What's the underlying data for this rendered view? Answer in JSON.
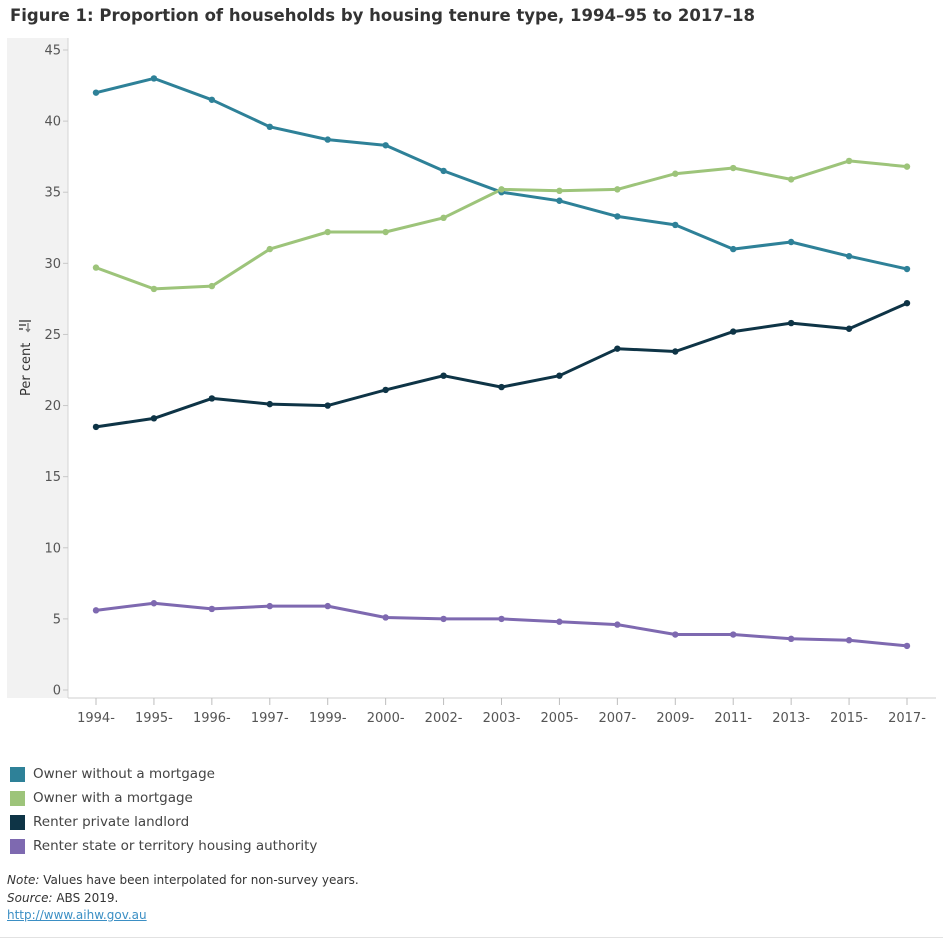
{
  "title": "Figure 1: Proportion of households by housing tenure type, 1994–95 to 2017–18",
  "chart_data": {
    "type": "line",
    "title": "Figure 1: Proportion of households by housing tenure type, 1994–95 to 2017–18",
    "xlabel": "",
    "ylabel": "Per cent",
    "ylim": [
      0,
      45
    ],
    "yticks": [
      0,
      5,
      10,
      15,
      20,
      25,
      30,
      35,
      40,
      45
    ],
    "grid": false,
    "legend_position": "bottom-left",
    "categories": [
      "1994-",
      "1995-",
      "1996-",
      "1997-",
      "1999-",
      "2000-",
      "2002-",
      "2003-",
      "2005-",
      "2007-",
      "2009-",
      "2011-",
      "2013-",
      "2015-",
      "2017-"
    ],
    "series": [
      {
        "name": "Owner without a mortgage",
        "color": "#2e8198",
        "values": [
          42.0,
          43.0,
          41.5,
          39.6,
          38.7,
          38.3,
          36.5,
          35.0,
          34.4,
          33.3,
          32.7,
          31.0,
          31.5,
          30.5,
          29.6
        ]
      },
      {
        "name": "Owner with a mortgage",
        "color": "#9dc47a",
        "values": [
          29.7,
          28.2,
          28.4,
          31.0,
          32.2,
          32.2,
          33.2,
          35.2,
          35.1,
          35.2,
          36.3,
          36.7,
          35.9,
          37.2,
          36.8
        ]
      },
      {
        "name": "Renter private landlord",
        "color": "#0e3446",
        "values": [
          18.5,
          19.1,
          20.5,
          20.1,
          20.0,
          21.1,
          22.1,
          21.3,
          22.1,
          24.0,
          23.8,
          25.2,
          25.8,
          25.4,
          27.2
        ]
      },
      {
        "name": "Renter state or territory housing authority",
        "color": "#7e69b0",
        "values": [
          5.6,
          6.1,
          5.7,
          5.9,
          5.9,
          5.1,
          5.0,
          5.0,
          4.8,
          4.6,
          3.9,
          3.9,
          3.6,
          3.5,
          3.1
        ]
      }
    ]
  },
  "footnote": {
    "note_label": "Note:",
    "note_text": " Values have been interpolated for non-survey years.",
    "source_label": "Source:",
    "source_text": " ABS 2019.",
    "link_text": "http://www.aihw.gov.au"
  },
  "icons": {
    "axis_sort": "sort-icon"
  }
}
